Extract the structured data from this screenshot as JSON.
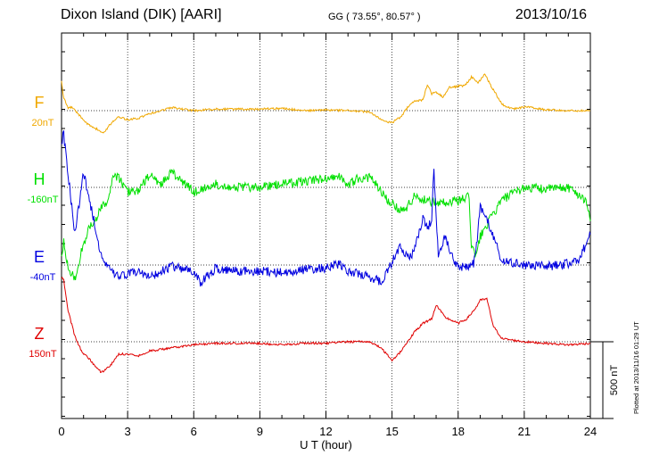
{
  "header": {
    "station": "Dixon Island (DIK)  [AARI]",
    "coords": "GG ( 73.55°,  80.57° )",
    "date": "2013/10/16"
  },
  "plotted_note": "Plotted at 2013/11/16 01:29 UT",
  "colors": {
    "F": "#f0a800",
    "H": "#00e000",
    "E": "#0000e0",
    "Z": "#e00000"
  },
  "chart_data": {
    "type": "line",
    "xlabel": "U T (hour)",
    "xlim": [
      0,
      24
    ],
    "xticks": [
      "0",
      "3",
      "6",
      "9",
      "12",
      "15",
      "18",
      "21",
      "24"
    ],
    "scale_label": "500 nT",
    "scale_nT": 500,
    "grid": true,
    "series": [
      {
        "name": "F",
        "baseline": "20nT",
        "color": "#f0a800",
        "x": [
          0,
          0.1,
          0.3,
          0.5,
          0.8,
          1.2,
          1.6,
          1.9,
          2.2,
          2.6,
          3.0,
          3.5,
          4.0,
          4.5,
          5.0,
          6.0,
          7.0,
          8.0,
          9.0,
          10.0,
          11.0,
          12.0,
          13.0,
          14.0,
          14.5,
          15.0,
          15.4,
          15.7,
          16.0,
          16.4,
          16.6,
          16.8,
          17.0,
          17.3,
          17.6,
          18.0,
          18.3,
          18.6,
          18.9,
          19.2,
          19.5,
          20.0,
          20.5,
          21.0,
          22.0,
          23.0,
          24.0
        ],
        "y": [
          190,
          80,
          20,
          20,
          -30,
          -90,
          -120,
          -150,
          -90,
          -40,
          -60,
          -50,
          -20,
          0,
          20,
          0,
          10,
          10,
          10,
          15,
          0,
          5,
          0,
          -10,
          -60,
          -80,
          -40,
          20,
          60,
          70,
          170,
          110,
          120,
          90,
          150,
          160,
          160,
          220,
          180,
          240,
          160,
          40,
          10,
          25,
          5,
          0,
          0
        ]
      },
      {
        "name": "H",
        "baseline": "-160nT",
        "color": "#00e000",
        "x": [
          0,
          0.1,
          0.3,
          0.6,
          0.9,
          1.2,
          1.5,
          1.8,
          2.1,
          2.4,
          2.7,
          3.0,
          3.5,
          4.0,
          4.5,
          5.0,
          6.0,
          7.0,
          8.0,
          9.0,
          10.0,
          11.0,
          12.0,
          12.5,
          13.0,
          13.5,
          14.0,
          14.3,
          14.8,
          15.5,
          16.0,
          17.0,
          18.0,
          18.5,
          18.6,
          18.8,
          19.0,
          19.4,
          20.0,
          21.0,
          22.0,
          23.0,
          23.8,
          24.0
        ],
        "y": [
          -450,
          -360,
          -520,
          -600,
          -420,
          -280,
          -230,
          -120,
          -80,
          90,
          40,
          -30,
          -20,
          80,
          20,
          100,
          -30,
          20,
          0,
          0,
          20,
          40,
          60,
          80,
          20,
          60,
          60,
          20,
          -80,
          -160,
          -60,
          -100,
          -90,
          -60,
          -380,
          -460,
          -320,
          -220,
          -80,
          0,
          -10,
          0,
          -80,
          -220
        ]
      },
      {
        "name": "E",
        "baseline": "-40nT",
        "color": "#0000e0",
        "x": [
          0,
          0.1,
          0.3,
          0.6,
          1.0,
          1.4,
          1.8,
          2.2,
          2.6,
          3.0,
          3.5,
          4.0,
          5.0,
          6.0,
          6.3,
          7.0,
          8.0,
          9.0,
          10.0,
          11.0,
          12.0,
          12.5,
          13.0,
          13.5,
          14.0,
          14.5,
          15.0,
          15.4,
          15.8,
          16.0,
          16.4,
          16.6,
          16.8,
          16.9,
          17.1,
          17.4,
          17.8,
          18.0,
          18.3,
          18.7,
          18.8,
          19.0,
          19.3,
          19.7,
          20.0,
          21.0,
          22.0,
          23.0,
          23.5,
          24.0
        ],
        "y": [
          800,
          850,
          600,
          200,
          600,
          340,
          60,
          -40,
          -80,
          -60,
          -40,
          -80,
          -10,
          -40,
          -120,
          -20,
          -40,
          -40,
          -50,
          -30,
          -20,
          10,
          -40,
          -60,
          -80,
          -110,
          20,
          120,
          40,
          100,
          300,
          240,
          300,
          620,
          60,
          180,
          20,
          -20,
          -10,
          10,
          80,
          380,
          300,
          140,
          20,
          0,
          -10,
          10,
          40,
          200
        ]
      },
      {
        "name": "Z",
        "baseline": "150nT",
        "color": "#e00000",
        "x": [
          0,
          0.1,
          0.3,
          0.6,
          0.9,
          1.3,
          1.8,
          2.2,
          2.6,
          3.0,
          3.5,
          4.0,
          5.0,
          6.0,
          7.0,
          8.0,
          9.0,
          10.0,
          11.0,
          12.0,
          13.0,
          14.0,
          14.5,
          15.0,
          15.3,
          15.6,
          16.0,
          16.4,
          16.8,
          17.0,
          17.4,
          18.0,
          18.4,
          18.8,
          19.0,
          19.3,
          19.6,
          20.0,
          21.0,
          22.0,
          23.0,
          24.0
        ],
        "y": [
          420,
          400,
          200,
          40,
          -60,
          -120,
          -200,
          -160,
          -80,
          -80,
          -90,
          -60,
          -40,
          -20,
          -10,
          -10,
          -10,
          -20,
          -10,
          -10,
          0,
          0,
          -40,
          -120,
          -80,
          -20,
          60,
          120,
          150,
          240,
          160,
          120,
          150,
          220,
          270,
          280,
          100,
          20,
          0,
          -10,
          -20,
          -10
        ]
      }
    ]
  }
}
